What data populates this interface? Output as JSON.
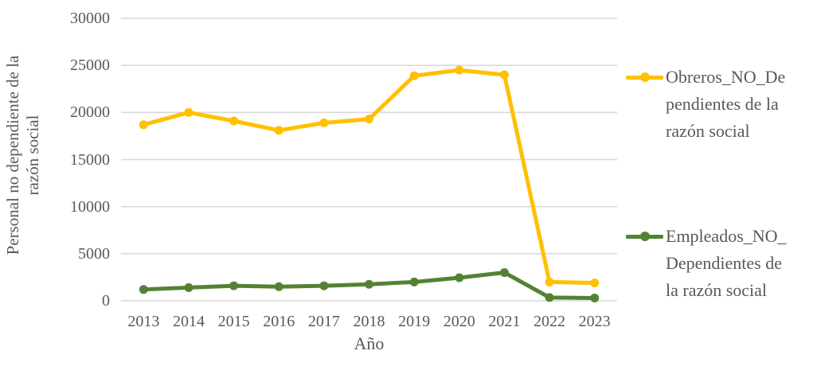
{
  "chart_data": {
    "type": "line",
    "categories": [
      "2013",
      "2014",
      "2015",
      "2016",
      "2017",
      "2018",
      "2019",
      "2020",
      "2021",
      "2022",
      "2023"
    ],
    "series": [
      {
        "name": "Obreros_NO_Dependientes de la razón social",
        "legend_lines": [
          "Obreros_NO_De",
          "pendientes de la",
          "razón social"
        ],
        "color": "#FFC000",
        "values": [
          18700,
          20000,
          19100,
          18100,
          18900,
          19300,
          23900,
          24500,
          24000,
          2000,
          1900
        ]
      },
      {
        "name": "Empleados_NO_Dependientes de la razón social",
        "legend_lines": [
          "Empleados_NO_",
          "Dependientes de",
          "la razón social"
        ],
        "color": "#548235",
        "values": [
          1200,
          1400,
          1600,
          1500,
          1600,
          1750,
          2000,
          2450,
          3000,
          350,
          300
        ]
      }
    ],
    "title": "",
    "xlabel": "Año",
    "ylabel": "Personal no dependiente de la razón social",
    "ylabel_lines": [
      "Personal no dependiente de la",
      "razón social"
    ],
    "yticks": [
      0,
      5000,
      10000,
      15000,
      20000,
      25000,
      30000
    ],
    "ylim": [
      0,
      30000
    ],
    "grid": "horizontal",
    "legend_position": "right"
  },
  "colors": {
    "background": "#FFFFFF",
    "text": "#595959",
    "gridline": "#D9D9D9",
    "series_obreros": "#FFC000",
    "series_empleados": "#548235"
  }
}
